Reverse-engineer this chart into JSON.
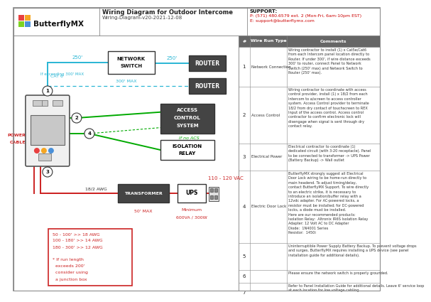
{
  "title": "Wiring Diagram for Outdoor Intercome",
  "subtitle": "Wiring-Diagram-v20-2021-12-08",
  "logo_text": "ButterflyMX",
  "support_text": "SUPPORT:",
  "support_phone": "P: (571) 480.6579 ext. 2 (Mon-Fri, 6am-10pm EST)",
  "support_email": "E: support@butterflymx.com",
  "bg_color": "#ffffff",
  "cyan": "#29b6d4",
  "green": "#00aa00",
  "red": "#cc2222",
  "dark_gray": "#444444",
  "wire_run_types": [
    "Network Connection",
    "Access Control",
    "Electrical Power",
    "Electric Door Lock",
    "",
    "",
    ""
  ],
  "comments": [
    "Wiring contractor to install (1) x Cat5e/Cat6\nfrom each Intercom panel location directly to\nRouter. If under 300', if wire distance exceeds\n300' to router, connect Panel to Network\nSwitch (250' max) and Network Switch to\nRouter (250' max).",
    "Wiring contractor to coordinate with access\ncontrol provider, install (1) x 18/2 from each\nIntercom to a/screen to access controller\nsystem. Access Control provider to terminate\n18/2 from dry contact of touchscreen to REX\nInput of the access control. Access control\ncontractor to confirm electronic lock will\ndisengage when signal is sent through dry\ncontact relay.",
    "Electrical contractor to coordinate (1)\ndedicated circuit (with 3-20 receptacle). Panel\nto be connected to transformer -> UPS Power\n(Battery Backup) -> Wall outlet",
    "ButterflyMX strongly suggest all Electrical\nDoor Lock wiring to be home-run directly to\nmain headend. To adjust timing/delay,\ncontact ButterflyMX Support. To wire directly\nto an electric strike, it is necessary to\nintroduce an isolation/buffer relay with a\n12vdc adapter. For AC-powered locks, a\nresistor must be installed; for DC-powered\nlocks, a diode must be installed.\nHere are our recommended products:\nIsolation Relay:  Altronix IR6S Isolation Relay\nAdapter: 12 Volt AC to DC Adapter\nDiode:  1N4001 Series\nResistor:  1450i",
    "Uninterruptible Power Supply Battery Backup. To prevent voltage drops\nand surges, ButterflyMX requires installing a UPS device (see panel\ninstallation guide for additional details).",
    "Please ensure the network switch is properly grounded.",
    "Refer to Panel Installation Guide for additional details. Leave 6' service loop\nat each location for low voltage cabling."
  ]
}
